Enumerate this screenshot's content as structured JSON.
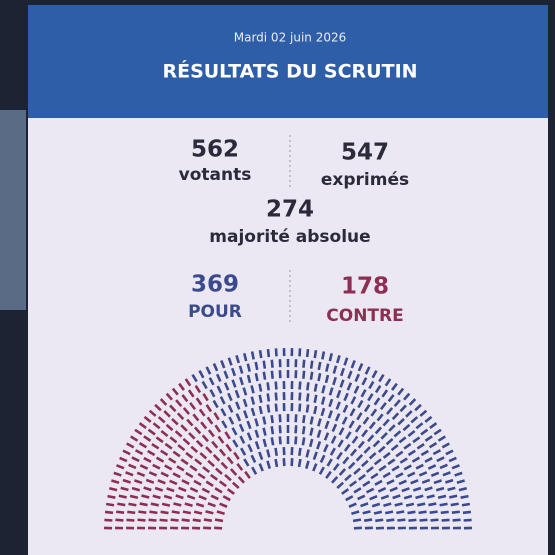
{
  "header": {
    "date": "Mardi 02 juin 2026",
    "title": "RÉSULTATS DU SCRUTIN"
  },
  "results": {
    "votants": {
      "value": 562,
      "label": "votants"
    },
    "exprimes": {
      "value": 547,
      "label": "exprimés"
    },
    "majorite": {
      "value": 274,
      "label": "majorité absolue"
    },
    "pour": {
      "value": 369,
      "label": "POUR",
      "color": "#3b4a8c"
    },
    "contre": {
      "value": 178,
      "label": "CONTRE",
      "color": "#8c2f52"
    }
  }
}
